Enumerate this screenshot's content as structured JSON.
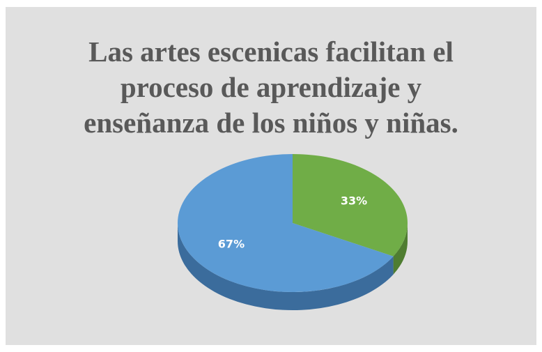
{
  "chart_data": {
    "type": "pie3d",
    "title": [
      "Las artes escenicas facilitan el",
      "proceso de aprendizaje  y",
      "enseñanza  de los niños y niñas."
    ],
    "values": [
      33,
      67
    ],
    "value_labels": [
      "33%",
      "67%"
    ],
    "colors": [
      "#70ad47",
      "#5b9bd5"
    ],
    "side_colors": [
      "#4f7d31",
      "#3b6c9c"
    ]
  }
}
